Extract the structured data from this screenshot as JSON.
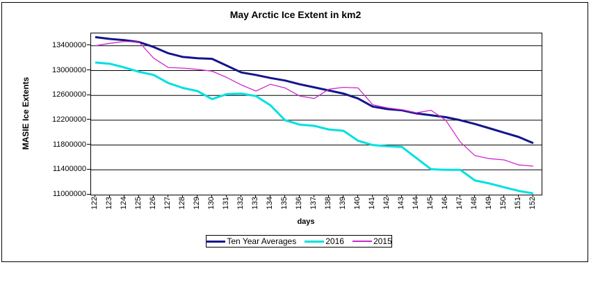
{
  "chart": {
    "background": "#ffffff",
    "border_color": "#000000",
    "gridline_color": "#000000"
  },
  "chart_data": {
    "type": "line",
    "title": "May Arctic Ice Extent in km2",
    "xlabel": "days",
    "ylabel": "MASIE Ice Extents",
    "x": [
      122,
      123,
      124,
      125,
      126,
      127,
      128,
      129,
      130,
      131,
      132,
      133,
      134,
      135,
      136,
      137,
      138,
      139,
      140,
      141,
      142,
      143,
      144,
      145,
      146,
      147,
      148,
      149,
      150,
      151,
      152
    ],
    "ylim": [
      11000000,
      13600000
    ],
    "y_ticks": [
      13400000,
      13000000,
      12600000,
      12200000,
      11800000,
      11400000,
      11000000
    ],
    "grid": "horizontal",
    "legend_position": "bottom",
    "series": [
      {
        "name": "Ten Year Averages",
        "color": "#14148c",
        "width": 3,
        "values": [
          13540000,
          13510000,
          13490000,
          13460000,
          13380000,
          13280000,
          13220000,
          13200000,
          13190000,
          13080000,
          12970000,
          12930000,
          12880000,
          12840000,
          12780000,
          12730000,
          12680000,
          12630000,
          12550000,
          12420000,
          12380000,
          12360000,
          12310000,
          12280000,
          12250000,
          12200000,
          12140000,
          12070000,
          12000000,
          11930000,
          11830000
        ]
      },
      {
        "name": "2016",
        "color": "#00e0e0",
        "width": 3,
        "values": [
          13130000,
          13110000,
          13050000,
          12980000,
          12930000,
          12800000,
          12720000,
          12670000,
          12540000,
          12620000,
          12630000,
          12590000,
          12440000,
          12200000,
          12130000,
          12110000,
          12050000,
          12030000,
          11870000,
          11800000,
          11780000,
          11770000,
          11590000,
          11410000,
          11400000,
          11400000,
          11230000,
          11180000,
          11120000,
          11060000,
          11020000
        ]
      },
      {
        "name": "2015",
        "color": "#cc29cc",
        "width": 1.3,
        "values": [
          13400000,
          13440000,
          13470000,
          13460000,
          13200000,
          13050000,
          13040000,
          13020000,
          12990000,
          12890000,
          12770000,
          12670000,
          12780000,
          12720000,
          12590000,
          12550000,
          12700000,
          12730000,
          12720000,
          12450000,
          12400000,
          12370000,
          12320000,
          12360000,
          12200000,
          11850000,
          11630000,
          11580000,
          11560000,
          11480000,
          11460000
        ]
      }
    ]
  }
}
